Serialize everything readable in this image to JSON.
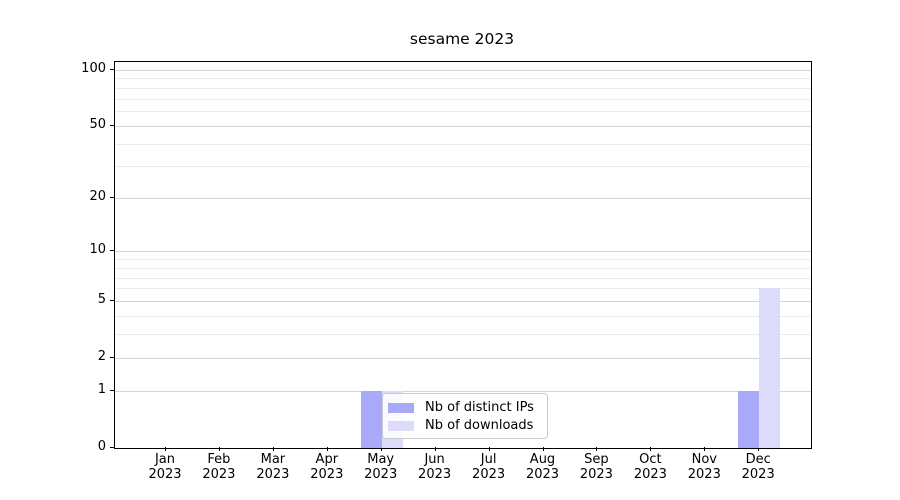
{
  "figure": {
    "title": "sesame 2023",
    "background": "#ffffff"
  },
  "chart_data": {
    "type": "bar",
    "title": "sesame 2023",
    "categories": [
      "Jan 2023",
      "Feb 2023",
      "Mar 2023",
      "Apr 2023",
      "May 2023",
      "Jun 2023",
      "Jul 2023",
      "Aug 2023",
      "Sep 2023",
      "Oct 2023",
      "Nov 2023",
      "Dec 2023"
    ],
    "series": [
      {
        "name": "Nb of distinct IPs",
        "color": "#a9a9fa",
        "values": [
          0,
          0,
          0,
          0,
          1,
          0,
          0,
          0,
          0,
          0,
          0,
          1
        ]
      },
      {
        "name": "Nb of downloads",
        "color": "#dcdcfa",
        "values": [
          0,
          0,
          0,
          0,
          1,
          0,
          0,
          0,
          0,
          0,
          0,
          6
        ]
      }
    ],
    "yscale": "log1p",
    "ylim": [
      0,
      112
    ],
    "y_major_ticks": [
      0,
      1,
      2,
      5,
      10,
      20,
      50,
      100
    ],
    "y_minor_ticks": [
      3,
      4,
      6,
      7,
      8,
      9,
      30,
      40,
      60,
      70,
      80,
      90
    ],
    "grid": "horizontal",
    "legend_position": "inside-lower-center"
  },
  "colors": {
    "grid_major": "#d4d4d4",
    "grid_minor": "#ebebeb",
    "spine": "#000000",
    "text": "#000000"
  }
}
